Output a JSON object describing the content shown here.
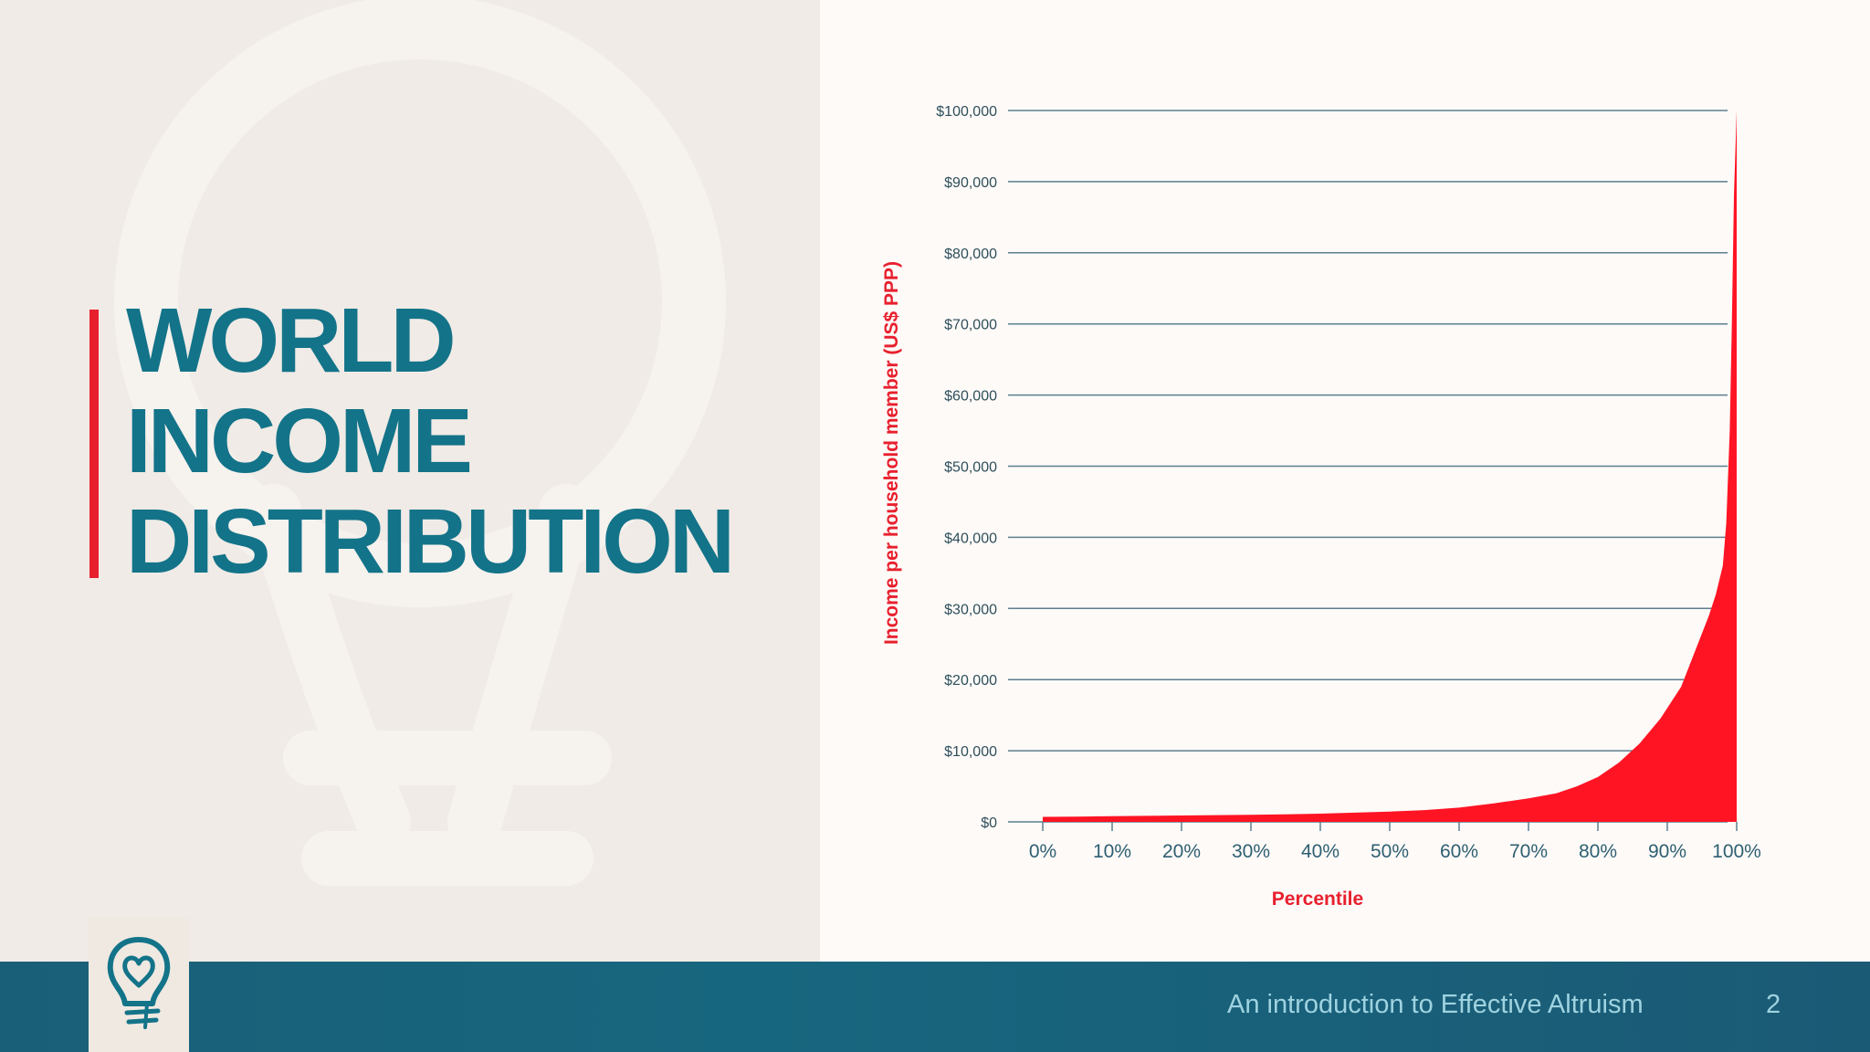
{
  "slide": {
    "title": "WORLD\nINCOME\nDISTRIBUTION",
    "footer_text": "An introduction to Effective Altruism",
    "page_number": "2"
  },
  "colors": {
    "title": "#137389",
    "accent": "#e8202e",
    "chart_fill": "#ff1424",
    "footer": "#17667f",
    "footer_text": "#9fd3e0"
  },
  "icons": {
    "logo": "lightbulb-heart-icon",
    "watermark": "lightbulb-watermark"
  },
  "chart_data": {
    "type": "area",
    "xlabel": "Percentile",
    "ylabel": "Income per household member (US$ PPP)",
    "x_ticks": [
      "0%",
      "10%",
      "20%",
      "30%",
      "40%",
      "50%",
      "60%",
      "70%",
      "80%",
      "90%",
      "100%"
    ],
    "y_ticks": [
      "$0",
      "$10,000",
      "$20,000",
      "$30,000",
      "$40,000",
      "$50,000",
      "$60,000",
      "$70,000",
      "$80,000",
      "$90,000",
      "$100,000"
    ],
    "xlim": [
      0,
      100
    ],
    "ylim": [
      0,
      100000
    ],
    "grid": true,
    "series": [
      {
        "x": [
          0,
          5,
          10,
          15,
          20,
          25,
          30,
          35,
          40,
          45,
          50,
          55,
          60,
          65,
          70,
          74,
          77,
          80,
          83,
          86,
          89,
          92,
          94,
          96,
          97,
          98,
          98.5,
          99,
          99.3,
          99.6,
          100
        ],
        "y": [
          700,
          750,
          800,
          850,
          900,
          950,
          1000,
          1050,
          1150,
          1300,
          1450,
          1650,
          2000,
          2600,
          3300,
          4000,
          5000,
          6300,
          8300,
          11000,
          14500,
          19000,
          24000,
          29000,
          32000,
          36000,
          42000,
          55000,
          70000,
          88000,
          100000
        ]
      }
    ]
  }
}
